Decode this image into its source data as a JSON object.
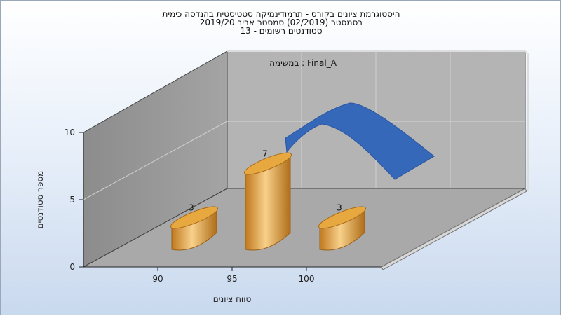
{
  "title_lines": [
    "היסטוגרמת ציונים בקורס - תרמודינמיקה סטטיסטית בהנדסה כימית",
    "בסמסטר  (02/2019)  סמסטר אביב 2019/20",
    "סטודנטים רשומים - 13"
  ],
  "chart_data": {
    "type": "bar",
    "title": "היסטוגרמת ציונים בקורס - תרמודינמיקה סטטיסטית בהנדסה כימית",
    "subtitle": [
      "בסמסטר  (02/2019)  סמסטר אביב 2019/20",
      "סטודנטים רשומים - 13"
    ],
    "annotation": "במשימה : Final_A",
    "categories": [
      "90",
      "95",
      "100"
    ],
    "values": [
      3,
      7,
      3
    ],
    "data_labels": [
      "3",
      "7",
      "3"
    ],
    "xlabel": "טווח ציונים",
    "ylabel": "מספר סטודנטים",
    "ylim": [
      0,
      10
    ],
    "yticks": [
      "0",
      "5",
      "10"
    ],
    "grid": true,
    "style": "3d cylinders with normal distribution ribbon",
    "colors": {
      "bars": "#e0a040",
      "curve": "#3a6fc0"
    }
  }
}
